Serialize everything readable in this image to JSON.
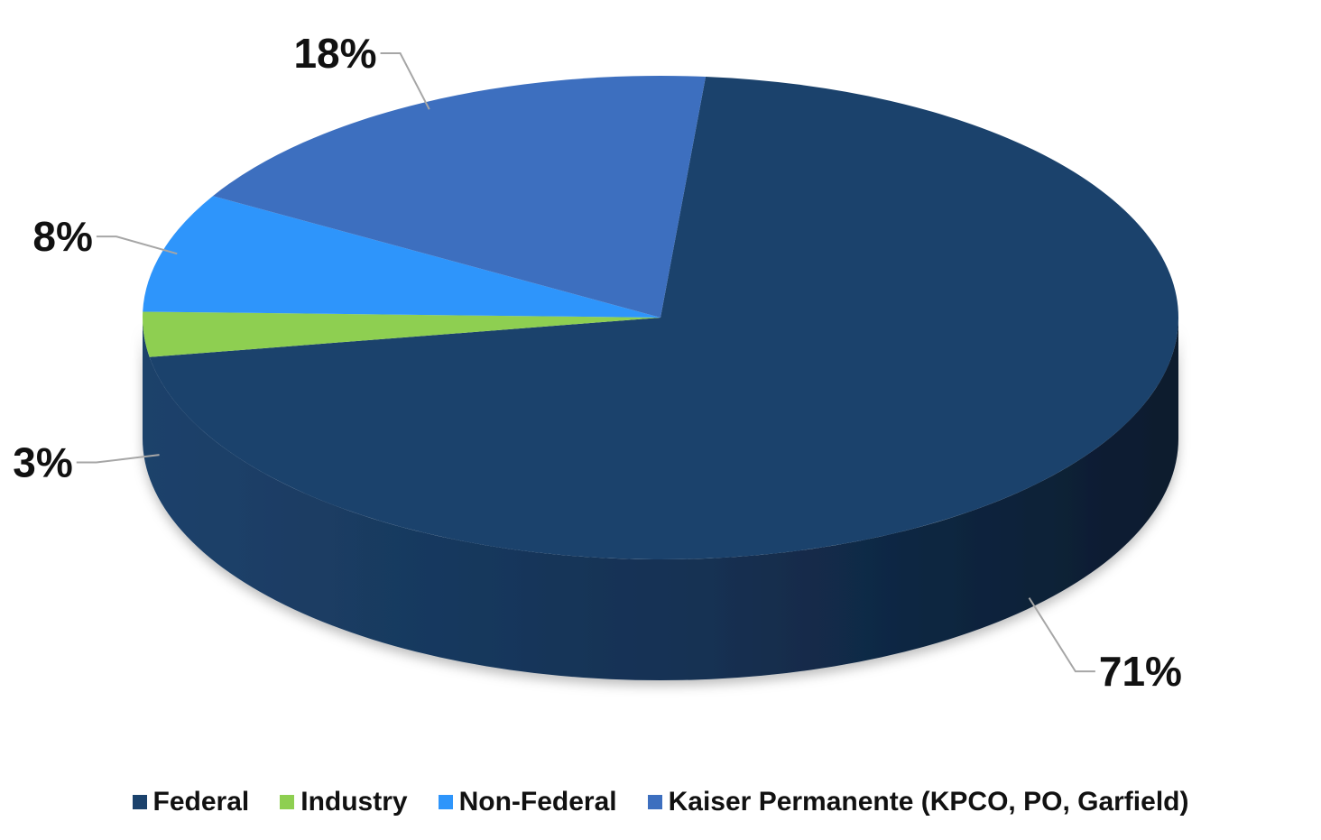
{
  "chart_data": {
    "type": "pie",
    "three_d": true,
    "legend_position": "bottom",
    "series": [
      {
        "name": "Federal",
        "value": 71,
        "label": "71%",
        "color": "#1b426c"
      },
      {
        "name": "Industry",
        "value": 3,
        "label": "3%",
        "color": "#8ecf51"
      },
      {
        "name": "Non-Federal",
        "value": 8,
        "label": "8%",
        "color": "#2e95fb"
      },
      {
        "name": "Kaiser Permanente (KPCO, PO, Garfield)",
        "value": 18,
        "label": "18%",
        "color": "#3d6fbf"
      }
    ]
  }
}
